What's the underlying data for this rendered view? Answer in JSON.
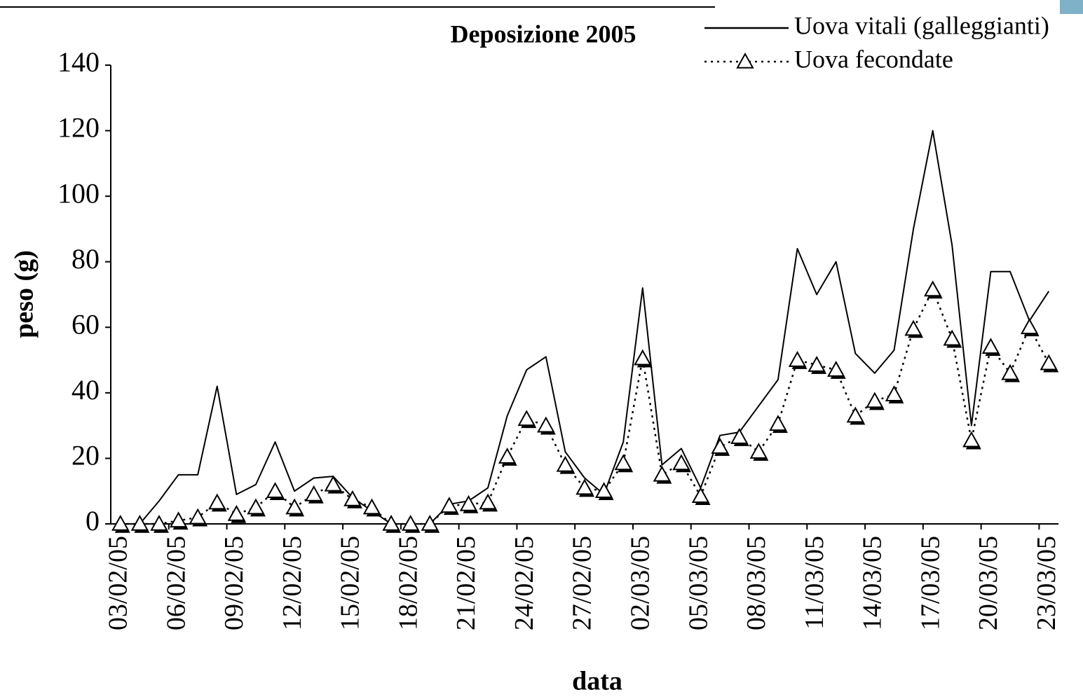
{
  "chart_data": {
    "type": "line",
    "title": "Deposizione 2005",
    "x_label": "data",
    "y_label": "peso (g)",
    "categories": [
      "03/02/05",
      null,
      null,
      "06/02/05",
      null,
      null,
      "09/02/05",
      null,
      null,
      "12/02/05",
      null,
      null,
      "15/02/05",
      null,
      null,
      "18/02/05",
      null,
      null,
      "21/02/05",
      null,
      null,
      "24/02/05",
      null,
      null,
      "27/02/05",
      null,
      null,
      "02/03/05",
      null,
      null,
      "05/03/05",
      null,
      null,
      "08/03/05",
      null,
      null,
      "11/03/05",
      null,
      null,
      "14/03/05",
      null,
      null,
      "17/03/05",
      null,
      null,
      "20/03/05",
      null,
      null,
      "23/03/05"
    ],
    "series": [
      {
        "name": "Uova vitali (galleggianti)",
        "color": "#000000",
        "dash": "solid",
        "marker": "none",
        "values": [
          0,
          0,
          7,
          15,
          15,
          42,
          9,
          12,
          25,
          10,
          14,
          14.5,
          8,
          4,
          0,
          0,
          0,
          6,
          7,
          11,
          33,
          47,
          51,
          22,
          14,
          9,
          25,
          72,
          18,
          23,
          11,
          27,
          28,
          36,
          44,
          84,
          70,
          80,
          52,
          46,
          53,
          90,
          120,
          85,
          30,
          77,
          77,
          62,
          71
        ]
      },
      {
        "name": "Uova fecondate",
        "color": "#000000",
        "dash": "dotted",
        "marker": "triangle",
        "values": [
          0,
          0,
          0,
          1,
          2,
          6.5,
          3,
          5,
          10,
          5,
          9,
          12,
          7.5,
          5,
          0,
          0,
          0,
          5.5,
          6,
          6.5,
          20.5,
          32,
          30,
          18,
          11,
          10,
          18.5,
          50.5,
          15,
          18.5,
          8.5,
          23.5,
          26.5,
          22,
          30.5,
          50,
          48.5,
          47,
          33,
          37.5,
          39.5,
          59.5,
          71.5,
          56.5,
          25.5,
          54,
          46,
          60,
          49
        ]
      }
    ],
    "ylim": [
      0,
      140
    ],
    "yticks": [
      0,
      20,
      40,
      60,
      80,
      100,
      120,
      140
    ],
    "grid": false,
    "legend": "top-right"
  }
}
